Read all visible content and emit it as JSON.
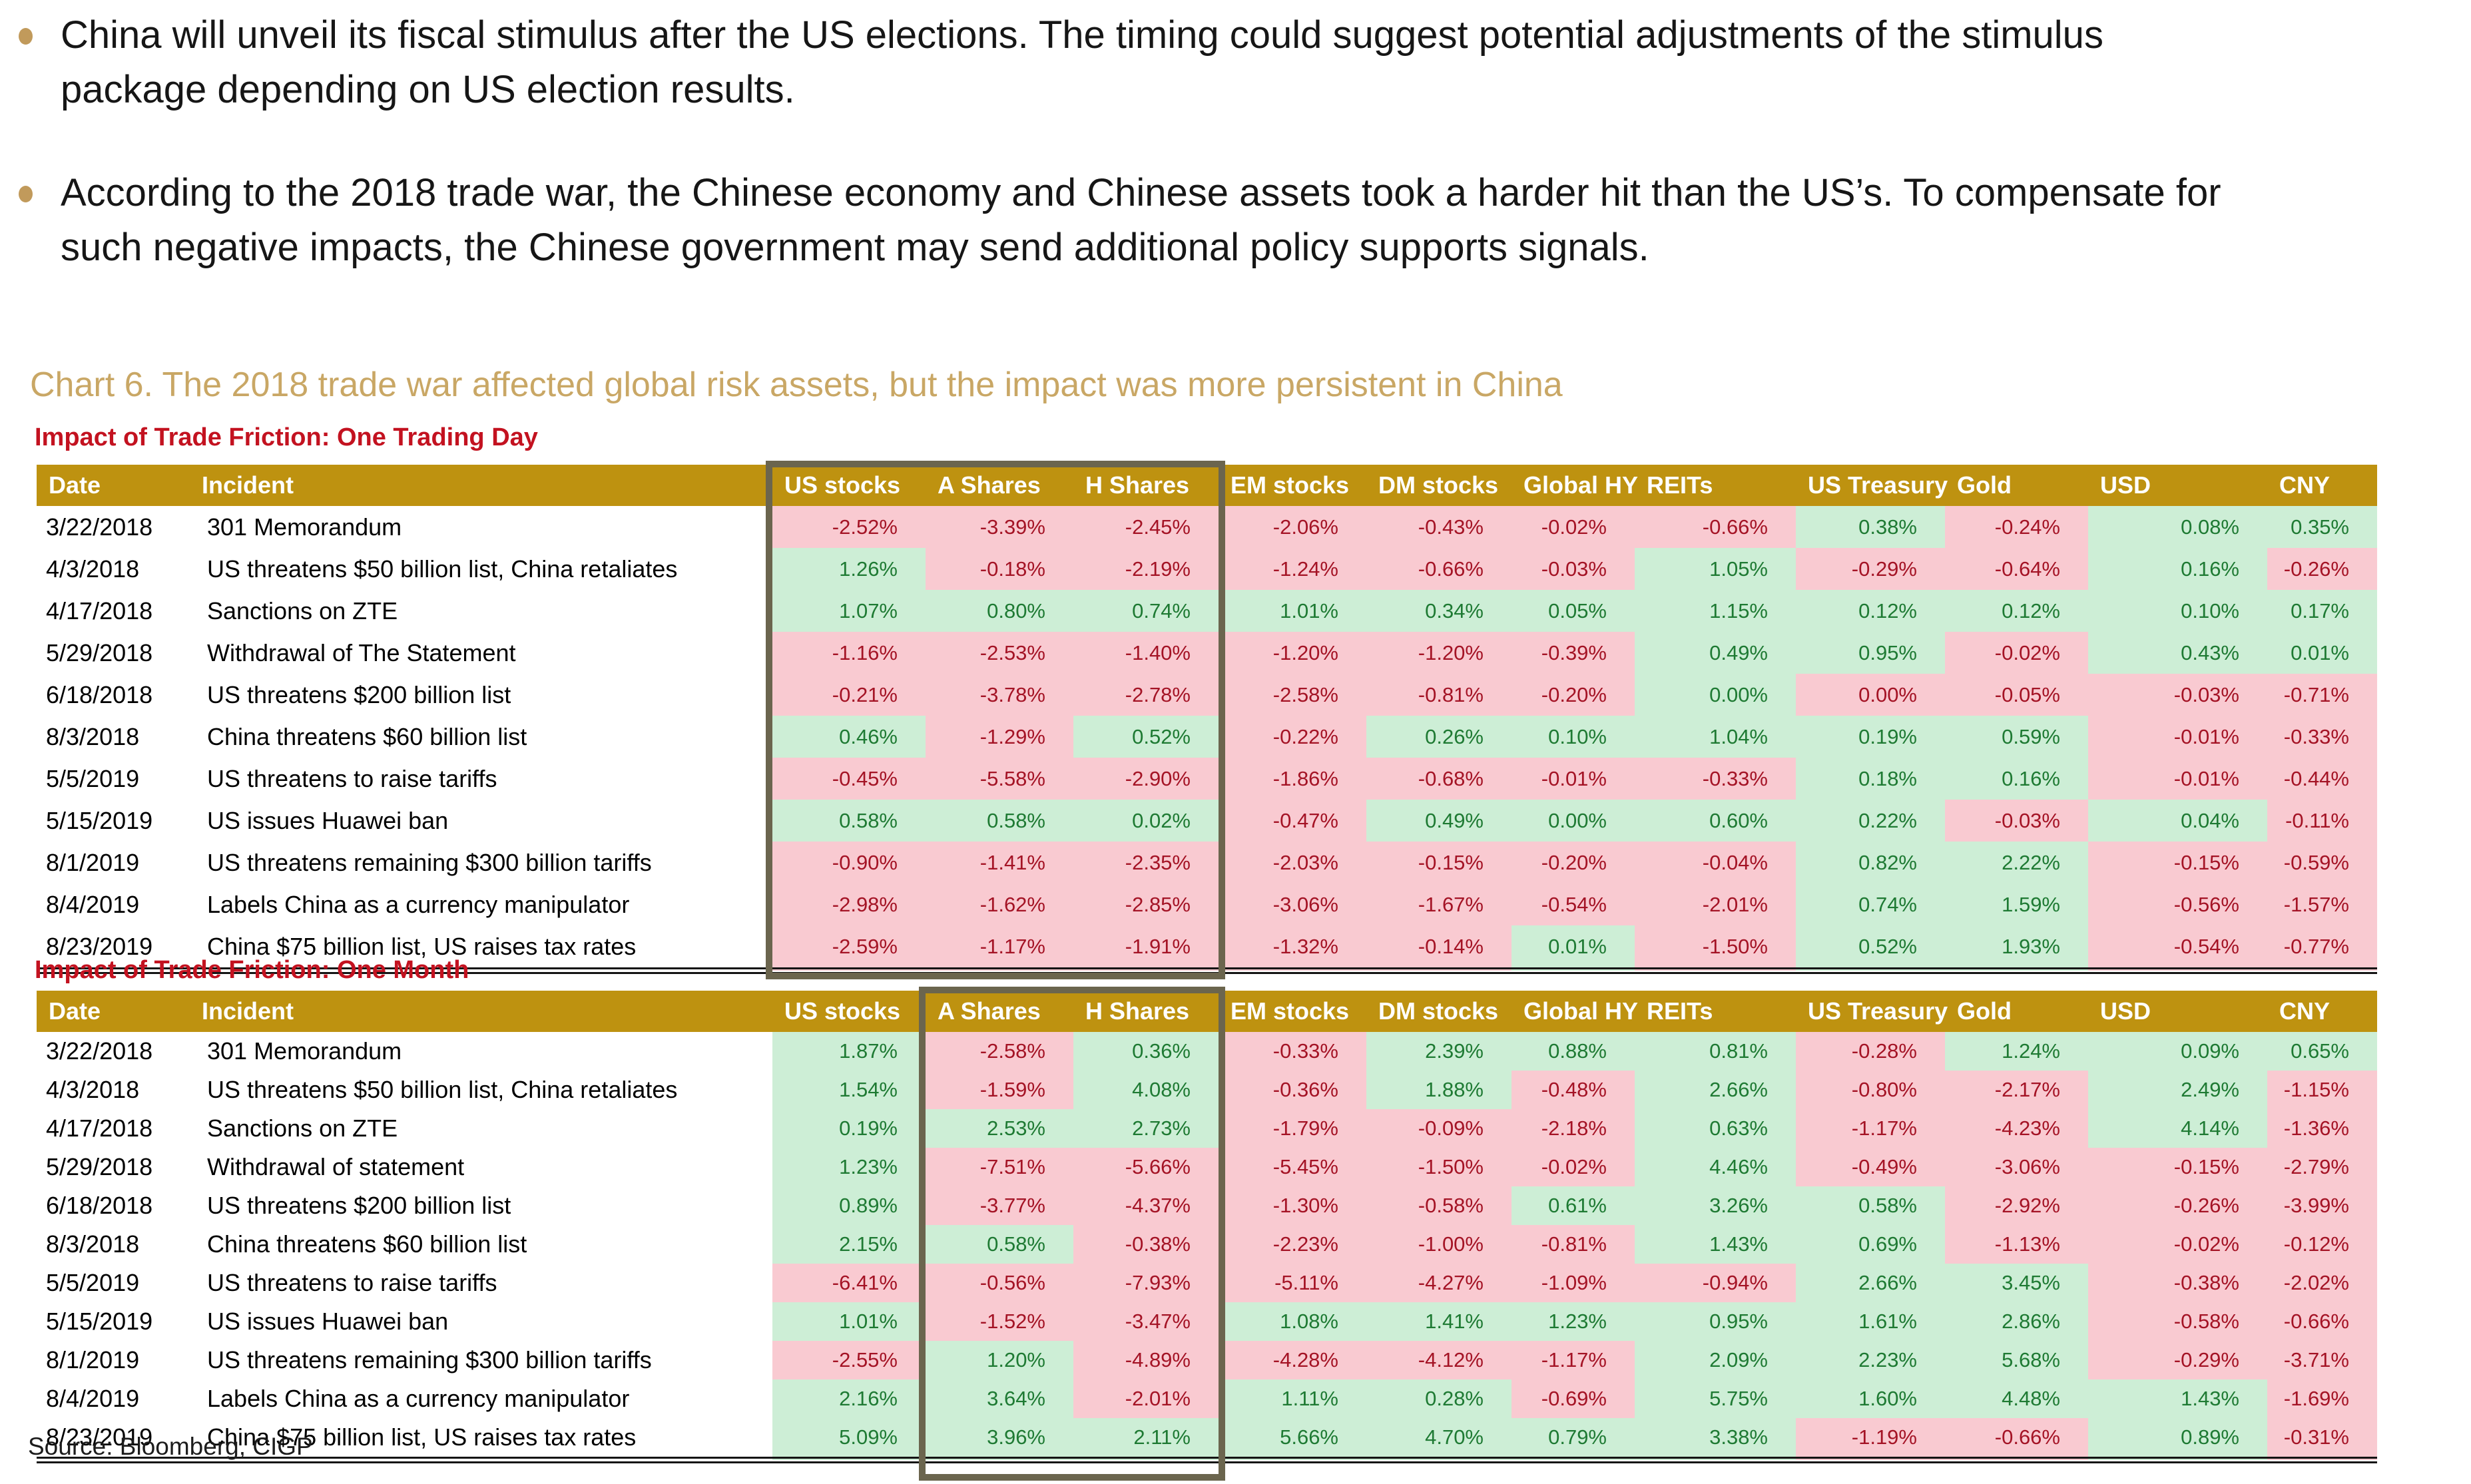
{
  "bullets": [
    "China will unveil its fiscal stimulus after the US elections. The timing could suggest potential adjustments of the stimulus package depending on US election results.",
    "According to the 2018 trade war, the Chinese economy and Chinese assets took a harder hit than the US’s. To compensate for such negative impacts, the Chinese government may send additional policy supports signals."
  ],
  "chart_title": "Chart 6. The 2018 trade war affected global risk assets, but the impact was more persistent in China",
  "source": "Source: Bloomberg, CIGP",
  "table_columns": [
    "Date",
    "Incident",
    "US stocks",
    "A Shares",
    "H Shares",
    "EM stocks",
    "DM stocks",
    "Global HY",
    "REITs",
    "US Treasury",
    "Gold",
    "USD",
    "CNY"
  ],
  "tables": [
    {
      "subtitle": "Impact of Trade Friction: One Trading Day",
      "highlight_columns": {
        "from": "US stocks",
        "to": "H Shares"
      },
      "rows": [
        {
          "date": "3/22/2018",
          "incident": "301 Memorandum",
          "values": [
            "-2.52%",
            "-3.39%",
            "-2.45%",
            "-2.06%",
            "-0.43%",
            "-0.02%",
            "-0.66%",
            "0.38%",
            "-0.24%",
            "0.08%",
            "0.35%"
          ]
        },
        {
          "date": "4/3/2018",
          "incident": "US threatens $50 billion list, China retaliates",
          "values": [
            "1.26%",
            "-0.18%",
            "-2.19%",
            "-1.24%",
            "-0.66%",
            "-0.03%",
            "1.05%",
            "-0.29%",
            "-0.64%",
            "0.16%",
            "-0.26%"
          ]
        },
        {
          "date": "4/17/2018",
          "incident": "Sanctions on ZTE",
          "values": [
            "1.07%",
            "0.80%",
            "0.74%",
            "1.01%",
            "0.34%",
            "0.05%",
            "1.15%",
            "0.12%",
            "0.12%",
            "0.10%",
            "0.17%"
          ]
        },
        {
          "date": "5/29/2018",
          "incident": "Withdrawal of The Statement",
          "values": [
            "-1.16%",
            "-2.53%",
            "-1.40%",
            "-1.20%",
            "-1.20%",
            "-0.39%",
            "0.49%",
            "0.95%",
            "-0.02%",
            "0.43%",
            "0.01%"
          ]
        },
        {
          "date": "6/18/2018",
          "incident": "US threatens $200 billion list",
          "values": [
            "-0.21%",
            "-3.78%",
            "-2.78%",
            "-2.58%",
            "-0.81%",
            "-0.20%",
            "0.00%",
            "0.00%",
            "-0.05%",
            "-0.03%",
            "-0.71%"
          ]
        },
        {
          "date": "8/3/2018",
          "incident": "China threatens $60 billion list",
          "values": [
            "0.46%",
            "-1.29%",
            "0.52%",
            "-0.22%",
            "0.26%",
            "0.10%",
            "1.04%",
            "0.19%",
            "0.59%",
            "-0.01%",
            "-0.33%"
          ]
        },
        {
          "date": "5/5/2019",
          "incident": "US threatens to raise tariffs",
          "values": [
            "-0.45%",
            "-5.58%",
            "-2.90%",
            "-1.86%",
            "-0.68%",
            "-0.01%",
            "-0.33%",
            "0.18%",
            "0.16%",
            "-0.01%",
            "-0.44%"
          ]
        },
        {
          "date": "5/15/2019",
          "incident": "US issues Huawei ban",
          "values": [
            "0.58%",
            "0.58%",
            "0.02%",
            "-0.47%",
            "0.49%",
            "0.00%",
            "0.60%",
            "0.22%",
            "-0.03%",
            "0.04%",
            "-0.11%"
          ]
        },
        {
          "date": "8/1/2019",
          "incident": "US threatens remaining $300 billion tariffs",
          "values": [
            "-0.90%",
            "-1.41%",
            "-2.35%",
            "-2.03%",
            "-0.15%",
            "-0.20%",
            "-0.04%",
            "0.82%",
            "2.22%",
            "-0.15%",
            "-0.59%"
          ]
        },
        {
          "date": "8/4/2019",
          "incident": "Labels China as a currency manipulator",
          "values": [
            "-2.98%",
            "-1.62%",
            "-2.85%",
            "-3.06%",
            "-1.67%",
            "-0.54%",
            "-2.01%",
            "0.74%",
            "1.59%",
            "-0.56%",
            "-1.57%"
          ]
        },
        {
          "date": "8/23/2019",
          "incident": "China $75 billion list, US raises tax rates",
          "values": [
            "-2.59%",
            "-1.17%",
            "-1.91%",
            "-1.32%",
            "-0.14%",
            "0.01%",
            "-1.50%",
            "0.52%",
            "1.93%",
            "-0.54%",
            "-0.77%"
          ]
        }
      ],
      "color_overrides": [
        {
          "row": 4,
          "col": 7,
          "color": "negative"
        }
      ]
    },
    {
      "subtitle": "Impact of Trade Friction: One Month",
      "highlight_columns": {
        "from": "A Shares",
        "to": "H Shares"
      },
      "rows": [
        {
          "date": "3/22/2018",
          "incident": "301 Memorandum",
          "values": [
            "1.87%",
            "-2.58%",
            "0.36%",
            "-0.33%",
            "2.39%",
            "0.88%",
            "0.81%",
            "-0.28%",
            "1.24%",
            "0.09%",
            "0.65%"
          ]
        },
        {
          "date": "4/3/2018",
          "incident": "US threatens $50 billion list, China retaliates",
          "values": [
            "1.54%",
            "-1.59%",
            "4.08%",
            "-0.36%",
            "1.88%",
            "-0.48%",
            "2.66%",
            "-0.80%",
            "-2.17%",
            "2.49%",
            "-1.15%"
          ]
        },
        {
          "date": "4/17/2018",
          "incident": "Sanctions on ZTE",
          "values": [
            "0.19%",
            "2.53%",
            "2.73%",
            "-1.79%",
            "-0.09%",
            "-2.18%",
            "0.63%",
            "-1.17%",
            "-4.23%",
            "4.14%",
            "-1.36%"
          ]
        },
        {
          "date": "5/29/2018",
          "incident": "Withdrawal of statement",
          "values": [
            "1.23%",
            "-7.51%",
            "-5.66%",
            "-5.45%",
            "-1.50%",
            "-0.02%",
            "4.46%",
            "-0.49%",
            "-3.06%",
            "-0.15%",
            "-2.79%"
          ]
        },
        {
          "date": "6/18/2018",
          "incident": "US threatens $200 billion list",
          "values": [
            "0.89%",
            "-3.77%",
            "-4.37%",
            "-1.30%",
            "-0.58%",
            "0.61%",
            "3.26%",
            "0.58%",
            "-2.92%",
            "-0.26%",
            "-3.99%"
          ]
        },
        {
          "date": "8/3/2018",
          "incident": "China threatens $60 billion list",
          "values": [
            "2.15%",
            "0.58%",
            "-0.38%",
            "-2.23%",
            "-1.00%",
            "-0.81%",
            "1.43%",
            "0.69%",
            "-1.13%",
            "-0.02%",
            "-0.12%"
          ]
        },
        {
          "date": "5/5/2019",
          "incident": "US threatens to raise tariffs",
          "values": [
            "-6.41%",
            "-0.56%",
            "-7.93%",
            "-5.11%",
            "-4.27%",
            "-1.09%",
            "-0.94%",
            "2.66%",
            "3.45%",
            "-0.38%",
            "-2.02%"
          ]
        },
        {
          "date": "5/15/2019",
          "incident": "US issues Huawei ban",
          "values": [
            "1.01%",
            "-1.52%",
            "-3.47%",
            "1.08%",
            "1.41%",
            "1.23%",
            "0.95%",
            "1.61%",
            "2.86%",
            "-0.58%",
            "-0.66%"
          ]
        },
        {
          "date": "8/1/2019",
          "incident": "US threatens remaining $300 billion tariffs",
          "values": [
            "-2.55%",
            "1.20%",
            "-4.89%",
            "-4.28%",
            "-4.12%",
            "-1.17%",
            "2.09%",
            "2.23%",
            "5.68%",
            "-0.29%",
            "-3.71%"
          ]
        },
        {
          "date": "8/4/2019",
          "incident": "Labels China as a currency manipulator",
          "values": [
            "2.16%",
            "3.64%",
            "-2.01%",
            "1.11%",
            "0.28%",
            "-0.69%",
            "5.75%",
            "1.60%",
            "4.48%",
            "1.43%",
            "-1.69%"
          ]
        },
        {
          "date": "8/23/2019",
          "incident": "China $75 billion list, US raises tax rates",
          "values": [
            "5.09%",
            "3.96%",
            "2.11%",
            "5.66%",
            "4.70%",
            "0.79%",
            "3.38%",
            "-1.19%",
            "-0.66%",
            "0.89%",
            "-0.31%"
          ]
        }
      ],
      "color_overrides": []
    }
  ],
  "colors": {
    "header_bg": "#BE9210",
    "title": "#C9A765",
    "subtitle": "#C31220",
    "positive_bg": "#CDEED6",
    "positive_text": "#1E7A33",
    "negative_bg": "#F9CAD1",
    "negative_text": "#A41325",
    "highlight_border": "#6B654E",
    "bullet": "#C19A5B"
  }
}
